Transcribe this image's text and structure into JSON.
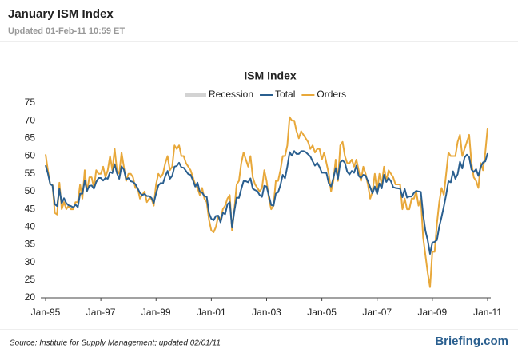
{
  "header": {
    "title": "January ISM Index",
    "subtitle": "Updated 01-Feb-11 10:59 ET"
  },
  "chart_data": {
    "type": "line",
    "title": "ISM Index",
    "recession": {
      "name": "Recession",
      "color": "#d3d3d3"
    },
    "categories": [
      "Jan-95",
      null,
      null,
      null,
      null,
      null,
      null,
      null,
      null,
      null,
      null,
      null,
      null,
      null,
      null,
      null,
      null,
      null,
      null,
      null,
      null,
      null,
      null,
      null,
      "Jan-97",
      null,
      null,
      null,
      null,
      null,
      null,
      null,
      null,
      null,
      null,
      null,
      null,
      null,
      null,
      null,
      null,
      null,
      null,
      null,
      null,
      null,
      null,
      null,
      "Jan-99",
      null,
      null,
      null,
      null,
      null,
      null,
      null,
      null,
      null,
      null,
      null,
      null,
      null,
      null,
      null,
      null,
      null,
      null,
      null,
      null,
      null,
      null,
      null,
      "Jan-01",
      null,
      null,
      null,
      null,
      null,
      null,
      null,
      null,
      null,
      null,
      null,
      null,
      null,
      null,
      null,
      null,
      null,
      null,
      null,
      null,
      null,
      null,
      null,
      "Jan-03",
      null,
      null,
      null,
      null,
      null,
      null,
      null,
      null,
      null,
      null,
      null,
      null,
      null,
      null,
      null,
      null,
      null,
      null,
      null,
      null,
      null,
      null,
      null,
      "Jan-05",
      null,
      null,
      null,
      null,
      null,
      null,
      null,
      null,
      null,
      null,
      null,
      null,
      null,
      null,
      null,
      null,
      null,
      null,
      null,
      null,
      null,
      null,
      null,
      "Jan-07",
      null,
      null,
      null,
      null,
      null,
      null,
      null,
      null,
      null,
      null,
      null,
      null,
      null,
      null,
      null,
      null,
      null,
      null,
      null,
      null,
      null,
      null,
      null,
      "Jan-09",
      null,
      null,
      null,
      null,
      null,
      null,
      null,
      null,
      null,
      null,
      null,
      null,
      null,
      null,
      null,
      null,
      null,
      null,
      null,
      null,
      null,
      null,
      null,
      "Jan-11"
    ],
    "series": [
      {
        "name": "Total",
        "color": "#2a5f8f",
        "values": [
          57.4,
          55.1,
          52.1,
          51.7,
          46.4,
          45.9,
          50.7,
          46.7,
          48.1,
          46.7,
          46.1,
          45.9,
          45.5,
          46.3,
          45.6,
          49.4,
          49.4,
          53.1,
          50.2,
          51.6,
          51.7,
          50.8,
          52.7,
          53.8,
          53.8,
          53.1,
          53.8,
          53.6,
          55.5,
          55.2,
          57.7,
          55.2,
          53.6,
          57.1,
          56.2,
          53.4,
          53.8,
          52.9,
          52.7,
          52.1,
          50.9,
          49.6,
          49.0,
          49.3,
          48.7,
          48.7,
          48.2,
          46.8,
          49.4,
          51.7,
          52.4,
          52.3,
          54.3,
          55.8,
          53.6,
          54.4,
          57.0,
          57.2,
          58.1,
          56.8,
          56.7,
          55.8,
          54.9,
          54.7,
          53.2,
          51.4,
          52.5,
          49.9,
          49.7,
          48.7,
          48.5,
          43.9,
          42.3,
          41.9,
          43.1,
          43.2,
          41.3,
          44.0,
          43.6,
          46.4,
          47.0,
          39.8,
          44.5,
          48.3,
          48.2,
          50.7,
          52.9,
          52.9,
          52.6,
          53.7,
          50.8,
          50.4,
          50.1,
          49.0,
          48.5,
          51.6,
          51.4,
          48.8,
          46.2,
          46.0,
          49.4,
          49.8,
          51.8,
          54.7,
          53.7,
          57.0,
          61.1,
          60.1,
          61.4,
          60.6,
          60.6,
          61.4,
          61.4,
          61.1,
          60.5,
          59.9,
          58.5,
          57.3,
          58.1,
          56.9,
          55.3,
          55.3,
          55.2,
          52.3,
          51.4,
          53.8,
          56.6,
          53.6,
          58.2,
          58.8,
          58.1,
          55.6,
          54.8,
          55.8,
          55.3,
          57.3,
          54.4,
          53.8,
          54.7,
          54.5,
          52.9,
          51.2,
          49.5,
          51.4,
          49.3,
          52.3,
          50.9,
          54.7,
          52.7,
          53.8,
          52.9,
          51.2,
          51.0,
          50.9,
          50.8,
          48.4,
          50.7,
          48.3,
          48.6,
          48.6,
          49.6,
          50.2,
          50.0,
          49.9,
          43.5,
          38.9,
          36.2,
          32.4,
          35.6,
          35.8,
          36.3,
          40.1,
          42.8,
          45.8,
          49.1,
          52.9,
          52.6,
          55.7,
          53.6,
          54.9,
          58.4,
          56.5,
          59.6,
          60.4,
          59.7,
          56.2,
          55.5,
          56.3,
          54.4,
          56.9,
          58.2,
          58.5,
          60.8
        ]
      },
      {
        "name": "Orders",
        "color": "#e8a83a",
        "values": [
          60.5,
          56,
          52,
          52,
          44,
          43.5,
          52.5,
          45,
          47,
          45,
          46,
          45,
          45,
          47,
          47,
          52,
          48,
          56,
          50,
          54,
          54,
          51,
          56,
          55,
          55,
          57,
          54,
          56,
          60,
          56,
          62,
          56,
          55,
          61,
          57,
          53,
          55,
          55,
          54,
          51,
          51,
          48,
          49,
          50,
          47,
          48,
          48,
          46,
          52,
          55,
          54,
          55,
          58,
          60,
          56,
          57,
          63,
          62,
          63,
          60,
          60,
          58,
          57,
          56,
          54,
          52,
          51,
          49,
          51,
          48,
          47,
          42,
          39,
          38.5,
          40,
          43,
          42,
          45,
          46,
          48,
          49,
          39,
          45,
          52,
          53,
          58,
          61,
          59,
          57,
          60,
          54,
          52,
          51,
          50,
          51,
          56,
          53,
          48,
          45,
          46,
          53,
          53,
          56,
          60,
          60,
          63,
          71,
          70,
          70,
          67,
          65,
          67,
          66,
          65,
          64,
          62,
          63,
          61,
          62,
          62,
          59,
          61,
          58,
          55,
          50,
          53,
          59,
          53,
          63,
          64,
          60,
          58,
          58,
          59,
          57,
          59,
          56,
          53,
          57,
          55,
          52,
          48,
          50,
          55,
          50,
          55,
          52,
          57,
          53,
          56,
          55,
          54,
          52,
          52,
          52,
          45,
          48,
          45,
          45,
          48,
          48,
          50,
          46,
          48,
          37,
          32,
          27,
          23,
          33,
          33,
          41,
          47,
          51,
          49,
          55,
          61,
          60,
          60,
          60,
          64,
          66,
          60,
          62,
          64,
          66,
          58,
          54,
          53,
          51,
          58,
          56,
          61,
          68
        ]
      }
    ],
    "ylim": [
      20,
      75
    ],
    "yticks": [
      20,
      25,
      30,
      35,
      40,
      45,
      50,
      55,
      60,
      65,
      70,
      75
    ],
    "grid": false
  },
  "footer": {
    "source": "Source: Institute for Supply Management; updated 02/01/11",
    "logo": "Briefing.com"
  }
}
